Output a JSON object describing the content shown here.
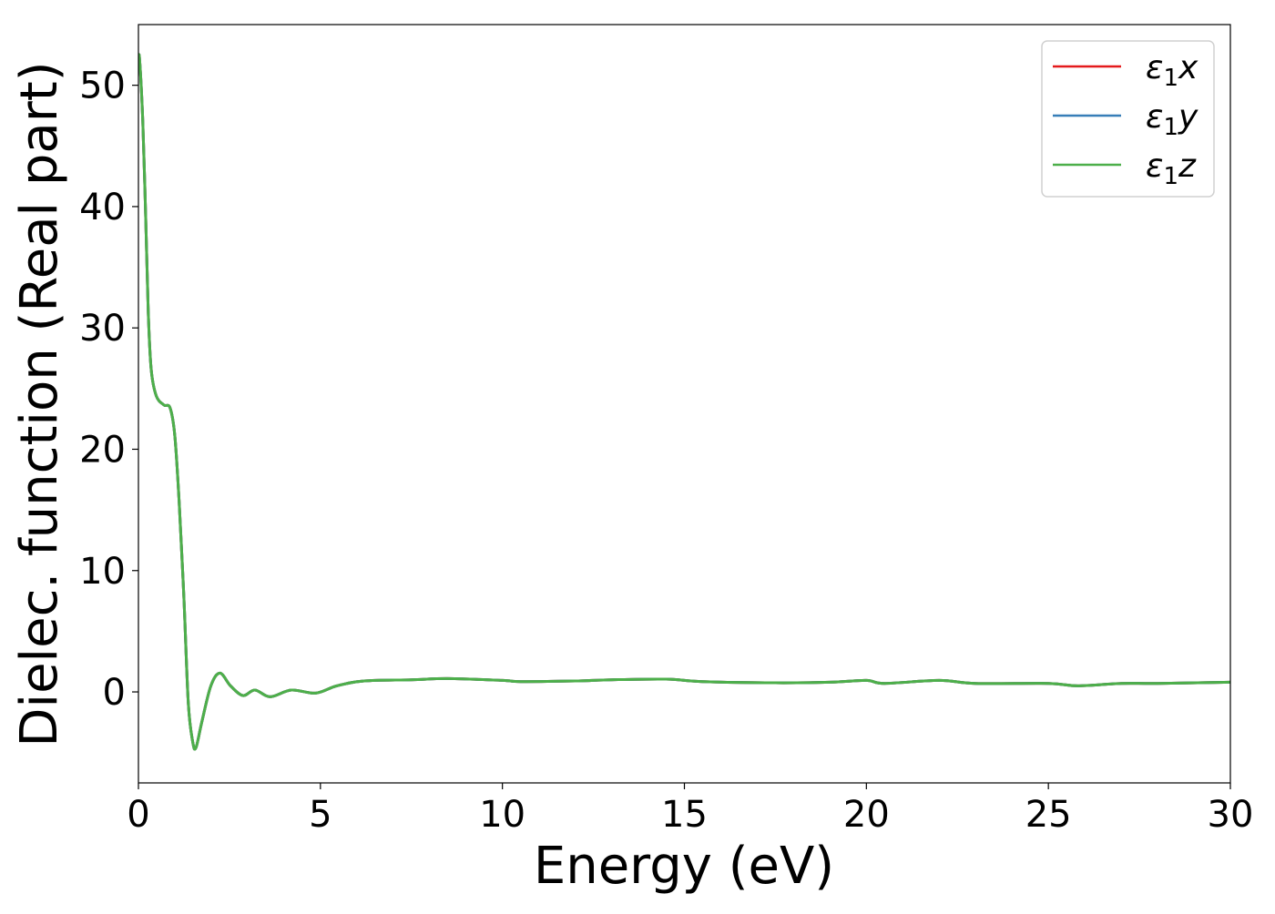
{
  "chart_data": {
    "type": "line",
    "title": "",
    "xlabel": "Energy (eV)",
    "ylabel": "Dielec. function (Real part)",
    "xlim": [
      0,
      30
    ],
    "ylim": [
      -7.5,
      55
    ],
    "xticks": [
      0,
      5,
      10,
      15,
      20,
      25,
      30
    ],
    "yticks": [
      0,
      10,
      20,
      30,
      40,
      50
    ],
    "grid": false,
    "legend_position": "top-right",
    "x": [
      0.0,
      0.03,
      0.12,
      0.2,
      0.27,
      0.35,
      0.49,
      0.7,
      0.87,
      1.0,
      1.12,
      1.25,
      1.37,
      1.49,
      1.58,
      1.74,
      1.99,
      2.24,
      2.53,
      2.87,
      3.2,
      3.62,
      4.2,
      4.87,
      5.45,
      6.2,
      7.5,
      8.5,
      10,
      10.5,
      12,
      13,
      14.5,
      15.5,
      17.5,
      19,
      20,
      20.5,
      22,
      23,
      25,
      25.8,
      27,
      28,
      30
    ],
    "series": [
      {
        "name": "ε1x",
        "legend_base": "ε",
        "legend_sub": "1",
        "legend_var": "x",
        "color": "#e41a1c",
        "values": [
          52.0,
          52.2,
          47.0,
          39.1,
          31.3,
          26.6,
          24.4,
          23.65,
          23.4,
          21.1,
          15.6,
          7.7,
          -0.9,
          -4.1,
          -4.6,
          -2.5,
          0.5,
          1.55,
          0.5,
          -0.3,
          0.15,
          -0.4,
          0.15,
          -0.1,
          0.5,
          0.9,
          1.0,
          1.1,
          0.95,
          0.85,
          0.9,
          1.0,
          1.05,
          0.85,
          0.75,
          0.8,
          0.95,
          0.7,
          0.95,
          0.7,
          0.7,
          0.5,
          0.7,
          0.7,
          0.8
        ]
      },
      {
        "name": "ε1y",
        "legend_base": "ε",
        "legend_sub": "1",
        "legend_var": "y",
        "color": "#377eb8",
        "values": [
          52.0,
          52.2,
          47.0,
          39.1,
          31.3,
          26.6,
          24.4,
          23.65,
          23.4,
          21.1,
          15.6,
          7.7,
          -0.9,
          -4.1,
          -4.6,
          -2.5,
          0.5,
          1.55,
          0.5,
          -0.3,
          0.15,
          -0.4,
          0.15,
          -0.1,
          0.5,
          0.9,
          1.0,
          1.1,
          0.95,
          0.85,
          0.9,
          1.0,
          1.05,
          0.85,
          0.75,
          0.8,
          0.95,
          0.7,
          0.95,
          0.7,
          0.7,
          0.5,
          0.7,
          0.7,
          0.8
        ]
      },
      {
        "name": "ε1z",
        "legend_base": "ε",
        "legend_sub": "1",
        "legend_var": "z",
        "color": "#4daf4a",
        "values": [
          52.0,
          52.2,
          47.0,
          39.1,
          31.3,
          26.6,
          24.4,
          23.65,
          23.4,
          21.1,
          15.6,
          7.7,
          -0.9,
          -4.1,
          -4.6,
          -2.5,
          0.5,
          1.55,
          0.5,
          -0.3,
          0.15,
          -0.4,
          0.15,
          -0.1,
          0.5,
          0.9,
          1.0,
          1.1,
          0.95,
          0.85,
          0.9,
          1.0,
          1.05,
          0.85,
          0.75,
          0.8,
          0.95,
          0.7,
          0.95,
          0.7,
          0.7,
          0.5,
          0.7,
          0.7,
          0.8
        ]
      }
    ]
  }
}
